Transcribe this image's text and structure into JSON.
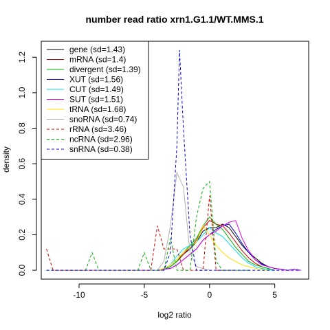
{
  "chart_data": {
    "type": "line",
    "title": "number read ratio xrn1.G1.1/WT.MMS.1",
    "xlabel": "log2 ratio",
    "ylabel": "density",
    "xlim": [
      -12.9,
      7.6
    ],
    "ylim": [
      -0.05,
      1.29
    ],
    "x_ticks": [
      -10,
      -5,
      0,
      5
    ],
    "x_tick_labels": [
      "-10",
      "-5",
      "0",
      "5"
    ],
    "y_ticks": [
      0.0,
      0.2,
      0.4,
      0.6,
      0.8,
      1.0,
      1.2
    ],
    "y_tick_labels": [
      "0.0",
      "0.2",
      "0.4",
      "0.6",
      "0.8",
      "1.0",
      "1.2"
    ],
    "legend_position": "top-left",
    "series": [
      {
        "name": "gene (sd=1.43)",
        "color": "#000000",
        "dash": "solid",
        "x": [
          -4,
          -3.5,
          -3,
          -2.5,
          -2,
          -1.5,
          -1,
          -0.5,
          0,
          0.5,
          1,
          1.5,
          2,
          2.5,
          3,
          3.5,
          4,
          4.5,
          5,
          5.5,
          6,
          6.5,
          7
        ],
        "y": [
          0,
          0.005,
          0.02,
          0.05,
          0.09,
          0.12,
          0.16,
          0.22,
          0.24,
          0.24,
          0.26,
          0.24,
          0.19,
          0.14,
          0.1,
          0.07,
          0.04,
          0.02,
          0.01,
          0.005,
          0,
          0.005,
          0
        ]
      },
      {
        "name": "mRNA (sd=1.4)",
        "color": "#d00000",
        "dash": "solid",
        "x": [
          -4,
          -3.5,
          -3,
          -2.5,
          -2,
          -1.5,
          -1,
          -0.5,
          0,
          0.5,
          1,
          1.5,
          2,
          2.5,
          3,
          3.5,
          4,
          4.5,
          5
        ],
        "y": [
          0,
          0.005,
          0.02,
          0.05,
          0.09,
          0.13,
          0.17,
          0.24,
          0.28,
          0.26,
          0.25,
          0.21,
          0.16,
          0.11,
          0.07,
          0.04,
          0.02,
          0.01,
          0
        ]
      },
      {
        "name": "divergent (sd=1.39)",
        "color": "#00b000",
        "dash": "solid",
        "x": [
          -4,
          -3.5,
          -3,
          -2.5,
          -2,
          -1.5,
          -1,
          -0.5,
          0,
          0.5,
          1,
          1.5,
          2,
          2.5,
          3,
          3.5,
          4,
          4.5,
          5
        ],
        "y": [
          0,
          0.005,
          0.02,
          0.05,
          0.1,
          0.14,
          0.18,
          0.25,
          0.3,
          0.26,
          0.23,
          0.18,
          0.13,
          0.09,
          0.05,
          0.03,
          0.02,
          0.01,
          0
        ]
      },
      {
        "name": "XUT (sd=1.56)",
        "color": "#0000d0",
        "dash": "solid",
        "x": [
          -4,
          -3.5,
          -3,
          -2.5,
          -2,
          -1.5,
          -1,
          -0.5,
          0,
          0.5,
          1,
          1.5,
          2,
          2.5,
          3,
          3.5,
          4,
          4.5,
          5,
          5.5,
          6,
          6.5,
          7
        ],
        "y": [
          0,
          0.005,
          0.01,
          0.03,
          0.06,
          0.09,
          0.12,
          0.17,
          0.2,
          0.23,
          0.25,
          0.26,
          0.21,
          0.15,
          0.1,
          0.06,
          0.035,
          0.02,
          0.01,
          0.005,
          0,
          0.005,
          0
        ]
      },
      {
        "name": "CUT (sd=1.49)",
        "color": "#00e0e0",
        "dash": "solid",
        "x": [
          -4,
          -3.5,
          -3,
          -2.5,
          -2,
          -1.5,
          -1,
          -0.5,
          0,
          0.5,
          1,
          1.5,
          2,
          2.5,
          3,
          3.5,
          4,
          4.5,
          5
        ],
        "y": [
          0,
          0.005,
          0.03,
          0.08,
          0.12,
          0.14,
          0.16,
          0.2,
          0.24,
          0.21,
          0.19,
          0.15,
          0.11,
          0.07,
          0.04,
          0.02,
          0.01,
          0.005,
          0
        ]
      },
      {
        "name": "SUT (sd=1.51)",
        "color": "#e000e0",
        "dash": "solid",
        "x": [
          -4,
          -3.5,
          -3,
          -2.5,
          -2,
          -1.5,
          -1,
          -0.5,
          0,
          0.5,
          1,
          1.5,
          2,
          2.5,
          3,
          3.5,
          4,
          4.5,
          5,
          5.5,
          6,
          6.5,
          7
        ],
        "y": [
          0,
          0.005,
          0.01,
          0.03,
          0.06,
          0.09,
          0.12,
          0.17,
          0.2,
          0.22,
          0.25,
          0.27,
          0.28,
          0.18,
          0.11,
          0.06,
          0.03,
          0.02,
          0.01,
          0.005,
          0,
          0.005,
          0
        ]
      },
      {
        "name": "tRNA (sd=1.68)",
        "color": "#ffe000",
        "dash": "solid",
        "x": [
          -4,
          -3.5,
          -3,
          -2.5,
          -2,
          -1.5,
          -1,
          -0.5,
          0,
          0.5,
          1,
          1.5,
          2,
          2.5,
          3,
          3.5,
          4,
          4.5
        ],
        "y": [
          0,
          0.01,
          0.03,
          0.06,
          0.1,
          0.13,
          0.16,
          0.25,
          0.2,
          0.14,
          0.1,
          0.07,
          0.05,
          0.03,
          0.02,
          0.01,
          0.005,
          0
        ]
      },
      {
        "name": "snoRNA (sd=0.74)",
        "color": "#b0b0b0",
        "dash": "solid",
        "x": [
          -4,
          -3.5,
          -3,
          -2.5,
          -2,
          -1.5,
          -1,
          -0.5,
          0
        ],
        "y": [
          0,
          0.05,
          0.25,
          0.55,
          0.47,
          0.1,
          0.02,
          0.01,
          0
        ]
      },
      {
        "name": "rRNA (sd=3.46)",
        "color": "#d00000",
        "dash": "dashed",
        "x": [
          -12.5,
          -12,
          -11.5,
          -11,
          -10.5,
          -10,
          -9.5,
          -9,
          -8.5,
          -8,
          -7.5,
          -7,
          -6.5,
          -6,
          -5.5,
          -5,
          -4.5,
          -4,
          -3.5,
          -3,
          -2.5,
          -2,
          -1.5,
          -1,
          -0.5,
          0,
          0.5,
          1,
          1.5,
          2
        ],
        "y": [
          0.12,
          0,
          0,
          0,
          0,
          0,
          0,
          0,
          0,
          0,
          0,
          0,
          0,
          0,
          0,
          0,
          0,
          0.25,
          0.12,
          0.12,
          0.12,
          0,
          0,
          0,
          0,
          0.42,
          0,
          0,
          0,
          0
        ]
      },
      {
        "name": "ncRNA (sd=2.96)",
        "color": "#00b000",
        "dash": "dashed",
        "x": [
          -12.5,
          -12,
          -11.5,
          -11,
          -10.5,
          -10,
          -9.5,
          -9,
          -8.5,
          -8,
          -7.5,
          -7,
          -6.5,
          -6,
          -5.5,
          -5,
          -4.5,
          -4,
          -3.5,
          -3,
          -2.5,
          -2,
          -1.5,
          -1,
          -0.5,
          0,
          0.5,
          1,
          1.5,
          2,
          2.5,
          3
        ],
        "y": [
          0,
          0,
          0,
          0,
          0,
          0,
          0,
          0.1,
          0,
          0,
          0,
          0,
          0,
          0,
          0,
          0.1,
          0,
          0,
          0,
          0.18,
          0,
          0,
          0,
          0.3,
          0.46,
          0.5,
          0.05,
          0,
          0,
          0,
          0,
          0
        ]
      },
      {
        "name": "snRNA (sd=0.38)",
        "color": "#0000d0",
        "dash": "dashed",
        "x": [
          -12.5,
          -5,
          -3.5,
          -3,
          -2.5,
          -2.3,
          -2,
          -1.5,
          -1,
          7
        ],
        "y": [
          0,
          0,
          0,
          0.1,
          0.7,
          1.24,
          0.8,
          0.2,
          0,
          0
        ]
      }
    ]
  }
}
